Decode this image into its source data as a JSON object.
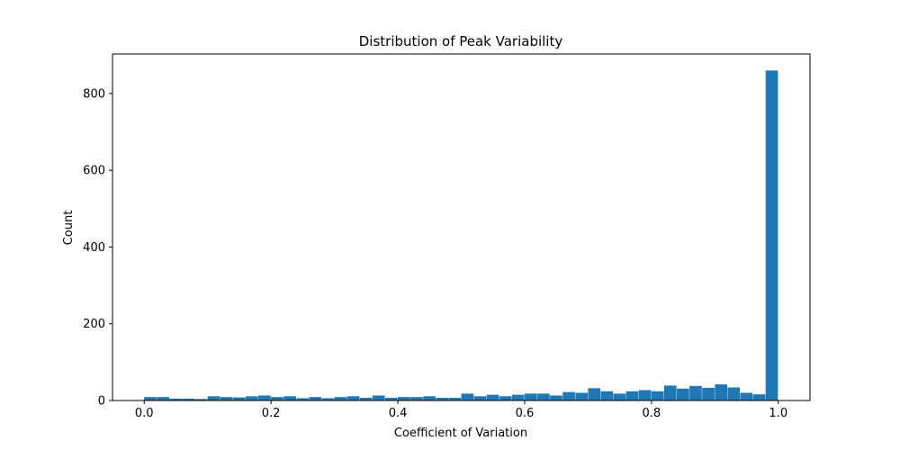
{
  "chart_data": {
    "type": "bar",
    "subtype": "histogram",
    "title": "Distribution of Peak Variability",
    "xlabel": "Coefficient of Variation",
    "ylabel": "Count",
    "xlim": [
      -0.05,
      1.05
    ],
    "ylim": [
      0,
      903
    ],
    "xticks": [
      0.0,
      0.2,
      0.4,
      0.6,
      0.8,
      1.0
    ],
    "xtick_labels": [
      "0.0",
      "0.2",
      "0.4",
      "0.6",
      "0.8",
      "1.0"
    ],
    "yticks": [
      0,
      200,
      400,
      600,
      800
    ],
    "ytick_labels": [
      "0",
      "200",
      "400",
      "600",
      "800"
    ],
    "bin_start": 0.0,
    "bin_end": 1.0,
    "bin_width": 0.02,
    "counts": [
      9,
      9,
      5,
      5,
      4,
      11,
      9,
      8,
      11,
      13,
      9,
      11,
      6,
      9,
      6,
      9,
      11,
      7,
      13,
      7,
      9,
      9,
      11,
      7,
      7,
      18,
      11,
      15,
      11,
      15,
      18,
      18,
      13,
      22,
      20,
      32,
      24,
      18,
      24,
      27,
      24,
      39,
      31,
      38,
      33,
      42,
      34,
      20,
      16,
      860
    ],
    "bar_color": "#1f77b4",
    "grid": false,
    "legend": "none"
  }
}
